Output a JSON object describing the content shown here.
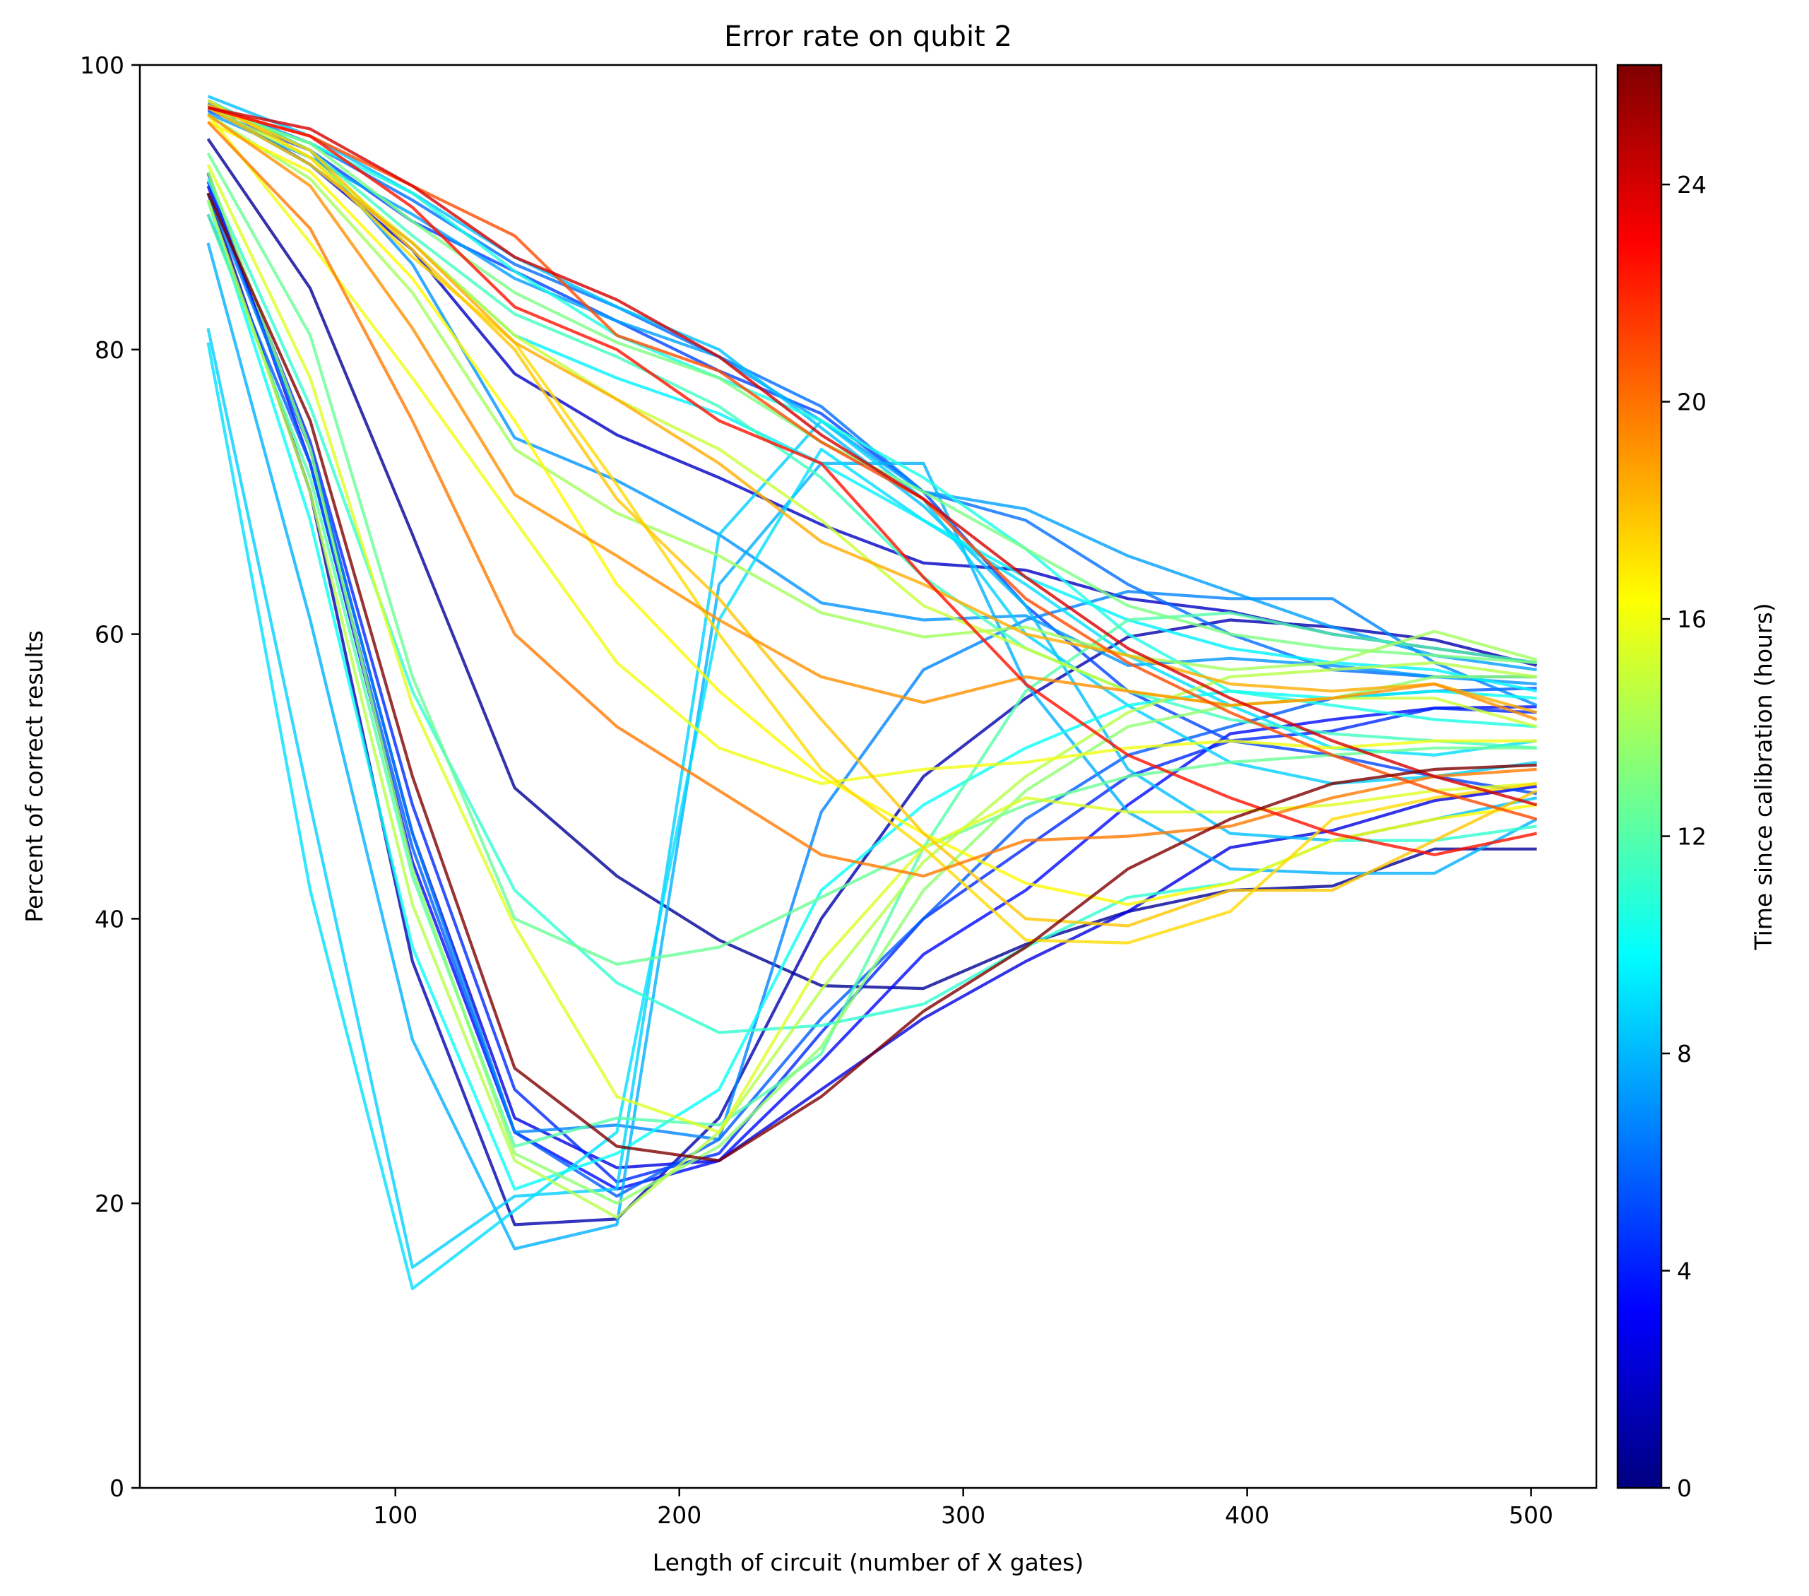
{
  "chart_data": {
    "type": "line",
    "title": "Error rate on qubit 2",
    "xlabel": "Length of circuit (number of X gates)",
    "ylabel": "Percent of correct results",
    "xlim": [
      10,
      523
    ],
    "ylim": [
      0,
      100
    ],
    "xticks": [
      100,
      200,
      300,
      400,
      500
    ],
    "yticks": [
      0,
      20,
      40,
      60,
      80,
      100
    ],
    "grid": false,
    "x": [
      34,
      70,
      106,
      142,
      178,
      214,
      250,
      286,
      322,
      358,
      394,
      430,
      466,
      502
    ],
    "colorbar": {
      "label": "Time since calibration (hours)",
      "colormap": "jet",
      "range": [
        0,
        26.2
      ],
      "ticks": [
        0,
        4,
        8,
        12,
        16,
        20,
        24
      ],
      "stops": [
        "#00007f",
        "#0000ff",
        "#007fff",
        "#00ffff",
        "#7fff7f",
        "#ffff00",
        "#ff7f00",
        "#ff0000",
        "#7f0000"
      ]
    },
    "series": [
      {
        "time": 0.6,
        "values": [
          94.8,
          84.3,
          67.0,
          49.2,
          43.0,
          38.5,
          35.3,
          35.1,
          38.2,
          40.5,
          42.0,
          42.3,
          44.9,
          44.9
        ]
      },
      {
        "time": 1.2,
        "values": [
          91.0,
          70.0,
          37.0,
          18.5,
          18.9,
          26.0,
          40.0,
          50.0,
          55.5,
          59.8,
          61.0,
          60.5,
          59.6,
          57.8
        ]
      },
      {
        "time": 1.8,
        "values": [
          97.2,
          93.0,
          87.0,
          78.3,
          74.0,
          71.0,
          67.7,
          65.0,
          64.5,
          62.5,
          61.6,
          60.0,
          59.0,
          58.0
        ]
      },
      {
        "time": 2.5,
        "values": [
          91.5,
          73.0,
          46.0,
          26.0,
          22.5,
          23.0,
          28.0,
          33.0,
          37.0,
          40.5,
          45.0,
          46.2,
          48.3,
          49.3
        ]
      },
      {
        "time": 3.5,
        "values": [
          92.4,
          72.0,
          44.0,
          25.0,
          21.0,
          23.0,
          30.0,
          37.5,
          42.0,
          48.0,
          53.0,
          54.0,
          54.8,
          54.9
        ]
      },
      {
        "time": 4.3,
        "values": [
          91.8,
          73.5,
          48.0,
          28.0,
          21.5,
          23.5,
          32.0,
          40.0,
          45.0,
          50.0,
          52.5,
          53.2,
          54.8,
          54.5
        ]
      },
      {
        "time": 5.0,
        "values": [
          96.8,
          94.0,
          89.0,
          85.5,
          82.0,
          78.5,
          75.5,
          70.0,
          62.0,
          56.0,
          52.5,
          51.5,
          50.0,
          48.8
        ]
      },
      {
        "time": 5.6,
        "values": [
          89.5,
          72.0,
          45.0,
          25.0,
          20.5,
          24.5,
          33.0,
          40.0,
          47.0,
          51.5,
          53.5,
          55.5,
          56.0,
          56.2
        ]
      },
      {
        "time": 6.1,
        "values": [
          97.3,
          94.5,
          90.5,
          86.0,
          83.0,
          79.5,
          76.0,
          70.0,
          68.0,
          63.5,
          60.0,
          57.5,
          57.0,
          57.0
        ]
      },
      {
        "time": 6.7,
        "values": [
          91.0,
          73.0,
          46.0,
          25.0,
          25.5,
          24.5,
          47.5,
          57.5,
          61.0,
          63.0,
          62.5,
          62.5,
          58.0,
          55.0
        ]
      },
      {
        "time": 7.1,
        "values": [
          97.5,
          94.0,
          86.0,
          73.8,
          70.8,
          67.0,
          62.2,
          61.0,
          61.3,
          57.8,
          58.3,
          57.8,
          57.0,
          56.5
        ]
      },
      {
        "time": 7.4,
        "values": [
          96.6,
          93.5,
          89.5,
          85.0,
          82.0,
          79.5,
          75.0,
          70.0,
          68.8,
          65.5,
          63.0,
          60.5,
          58.5,
          57.5
        ]
      },
      {
        "time": 7.8,
        "values": [
          87.5,
          61.0,
          31.5,
          16.8,
          18.5,
          63.5,
          72.0,
          72.0,
          56.5,
          47.5,
          43.5,
          43.2,
          43.2,
          47.0
        ]
      },
      {
        "time": 8.2,
        "values": [
          97.8,
          95.0,
          91.0,
          86.5,
          83.0,
          80.0,
          74.5,
          69.0,
          62.0,
          50.5,
          46.0,
          45.5,
          47.0,
          48.5
        ]
      },
      {
        "time": 8.6,
        "values": [
          81.5,
          48.0,
          15.5,
          20.5,
          21.0,
          67.0,
          75.0,
          69.5,
          60.0,
          55.0,
          51.0,
          49.5,
          50.0,
          51.0
        ]
      },
      {
        "time": 9.0,
        "values": [
          80.5,
          42.0,
          14.0,
          19.5,
          25.0,
          61.0,
          73.0,
          68.0,
          63.5,
          58.5,
          55.0,
          52.0,
          51.5,
          52.5
        ]
      },
      {
        "time": 9.5,
        "values": [
          97.0,
          93.0,
          87.5,
          81.0,
          78.0,
          75.5,
          72.0,
          68.0,
          64.0,
          61.0,
          59.0,
          58.0,
          57.5,
          56.0
        ]
      },
      {
        "time": 10.0,
        "values": [
          90.5,
          68.0,
          38.0,
          21.0,
          23.5,
          28.0,
          42.0,
          48.0,
          52.0,
          55.0,
          56.0,
          55.5,
          56.0,
          55.5
        ]
      },
      {
        "time": 10.5,
        "values": [
          97.0,
          94.5,
          91.0,
          85.5,
          81.0,
          78.0,
          75.0,
          71.0,
          66.0,
          60.0,
          56.0,
          55.0,
          54.0,
          53.5
        ]
      },
      {
        "time": 11.0,
        "values": [
          92.0,
          76.0,
          56.0,
          42.0,
          35.5,
          32.0,
          32.5,
          34.0,
          38.0,
          41.5,
          42.5,
          45.5,
          45.5,
          46.5
        ]
      },
      {
        "time": 11.5,
        "values": [
          97.5,
          94.0,
          88.0,
          82.5,
          79.5,
          76.0,
          71.0,
          64.0,
          59.0,
          56.0,
          54.0,
          53.0,
          52.5,
          52.0
        ]
      },
      {
        "time": 12.0,
        "values": [
          89.5,
          71.0,
          43.0,
          24.0,
          26.0,
          25.5,
          30.5,
          45.0,
          56.0,
          61.0,
          61.5,
          60.0,
          59.0,
          58.0
        ]
      },
      {
        "time": 12.5,
        "values": [
          93.8,
          81.0,
          57.0,
          40.0,
          36.8,
          38.0,
          41.5,
          45.0,
          48.0,
          50.0,
          51.0,
          51.5,
          52.0,
          52.0
        ]
      },
      {
        "time": 13.0,
        "values": [
          97.0,
          94.5,
          89.0,
          84.0,
          80.5,
          78.0,
          73.5,
          70.0,
          66.0,
          62.0,
          60.0,
          59.0,
          58.5,
          58.0
        ]
      },
      {
        "time": 13.5,
        "values": [
          92.5,
          73.0,
          43.5,
          23.5,
          20.0,
          24.0,
          31.0,
          42.0,
          49.0,
          53.5,
          55.0,
          55.5,
          57.0,
          57.0
        ]
      },
      {
        "time": 14.0,
        "values": [
          96.5,
          92.0,
          84.0,
          73.0,
          68.5,
          65.5,
          61.5,
          59.8,
          60.5,
          58.5,
          57.5,
          58.0,
          60.2,
          58.2
        ]
      },
      {
        "time": 14.5,
        "values": [
          90.5,
          70.0,
          41.0,
          23.0,
          19.0,
          25.0,
          35.0,
          44.0,
          50.0,
          54.5,
          57.0,
          57.5,
          58.0,
          57.0
        ]
      },
      {
        "time": 15.0,
        "values": [
          97.0,
          93.5,
          87.5,
          81.0,
          76.5,
          73.0,
          68.0,
          62.0,
          59.0,
          56.0,
          55.0,
          55.5,
          55.5,
          53.5
        ]
      },
      {
        "time": 15.5,
        "values": [
          93.0,
          78.0,
          55.0,
          39.5,
          27.5,
          25.0,
          37.0,
          45.0,
          48.5,
          47.5,
          47.5,
          48.0,
          49.0,
          49.5
        ]
      },
      {
        "time": 16.0,
        "values": [
          96.5,
          87.5,
          78.0,
          68.0,
          58.0,
          52.0,
          49.5,
          50.5,
          51.0,
          52.0,
          52.5,
          52.0,
          52.5,
          52.5
        ]
      },
      {
        "time": 16.5,
        "values": [
          96.0,
          92.5,
          85.0,
          75.0,
          63.5,
          56.0,
          50.0,
          46.0,
          42.5,
          41.0,
          42.5,
          45.5,
          47.0,
          48.0
        ]
      },
      {
        "time": 17.3,
        "values": [
          97.5,
          93.5,
          86.5,
          80.5,
          70.5,
          60.0,
          50.5,
          45.0,
          38.5,
          38.3,
          40.5,
          47.0,
          48.5,
          49.5
        ]
      },
      {
        "time": 17.8,
        "values": [
          97.2,
          94.0,
          87.0,
          80.0,
          69.5,
          62.5,
          54.0,
          46.0,
          40.0,
          39.5,
          42.0,
          42.0,
          45.5,
          49.0
        ]
      },
      {
        "time": 18.5,
        "values": [
          97.0,
          93.0,
          87.5,
          80.5,
          76.5,
          72.0,
          66.5,
          63.5,
          60.0,
          58.5,
          56.5,
          56.0,
          56.5,
          54.5
        ]
      },
      {
        "time": 19.2,
        "values": [
          96.5,
          91.5,
          81.5,
          69.8,
          65.5,
          61.0,
          57.0,
          55.2,
          57.0,
          56.0,
          55.0,
          55.5,
          56.5,
          54.0
        ]
      },
      {
        "time": 19.8,
        "values": [
          96.0,
          88.5,
          75.0,
          60.0,
          53.5,
          49.0,
          44.5,
          43.0,
          45.5,
          45.8,
          46.5,
          48.5,
          50.0,
          50.5
        ]
      },
      {
        "time": 21.0,
        "values": [
          97.0,
          95.0,
          91.5,
          88.0,
          81.0,
          78.5,
          73.5,
          69.5,
          62.5,
          58.0,
          54.5,
          51.5,
          49.0,
          47.0
        ]
      },
      {
        "time": 22.5,
        "values": [
          97.0,
          95.0,
          90.0,
          83.0,
          80.0,
          75.0,
          72.0,
          64.0,
          56.5,
          51.5,
          48.5,
          46.0,
          44.5,
          46.0
        ]
      },
      {
        "time": 24.0,
        "values": [
          97.0,
          95.5,
          91.5,
          86.5,
          83.5,
          79.5,
          74.0,
          69.5,
          64.0,
          59.0,
          55.5,
          52.5,
          50.0,
          48.0
        ]
      },
      {
        "time": 26.2,
        "values": [
          91.0,
          75.0,
          50.0,
          29.5,
          24.0,
          23.0,
          27.5,
          33.5,
          38.0,
          43.5,
          47.0,
          49.5,
          50.5,
          50.8
        ]
      }
    ]
  }
}
